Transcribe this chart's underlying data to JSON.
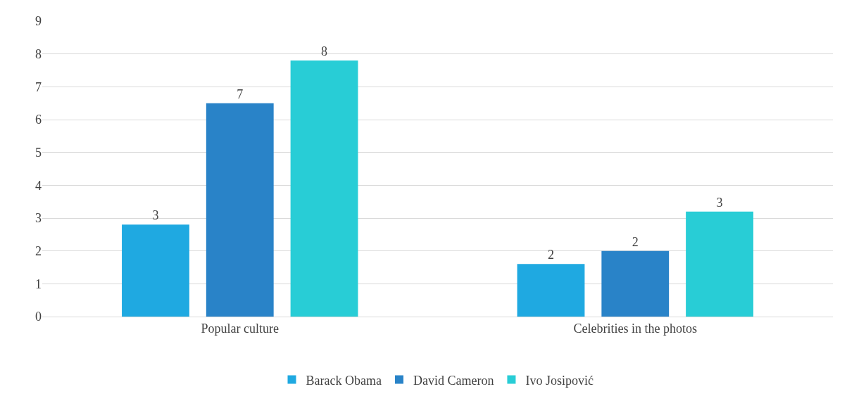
{
  "chart_data": {
    "type": "bar",
    "categories": [
      "Popular culture",
      "Celebrities in the photos"
    ],
    "series": [
      {
        "name": "Barack Obama",
        "color": "#1fa9e1",
        "values": [
          2.8,
          1.6
        ],
        "value_labels": [
          "3",
          "2"
        ]
      },
      {
        "name": "David Cameron",
        "color": "#2983c8",
        "values": [
          6.5,
          2.0
        ],
        "value_labels": [
          "7",
          "2"
        ]
      },
      {
        "name": "Ivo Josipović",
        "color": "#28cdd6",
        "values": [
          7.8,
          3.2
        ],
        "value_labels": [
          "8",
          "3"
        ]
      }
    ],
    "ylim": [
      0,
      9
    ],
    "yticks": [
      0,
      1,
      2,
      3,
      4,
      5,
      6,
      7,
      8,
      9
    ],
    "grid": "y",
    "legend": "bottom"
  }
}
